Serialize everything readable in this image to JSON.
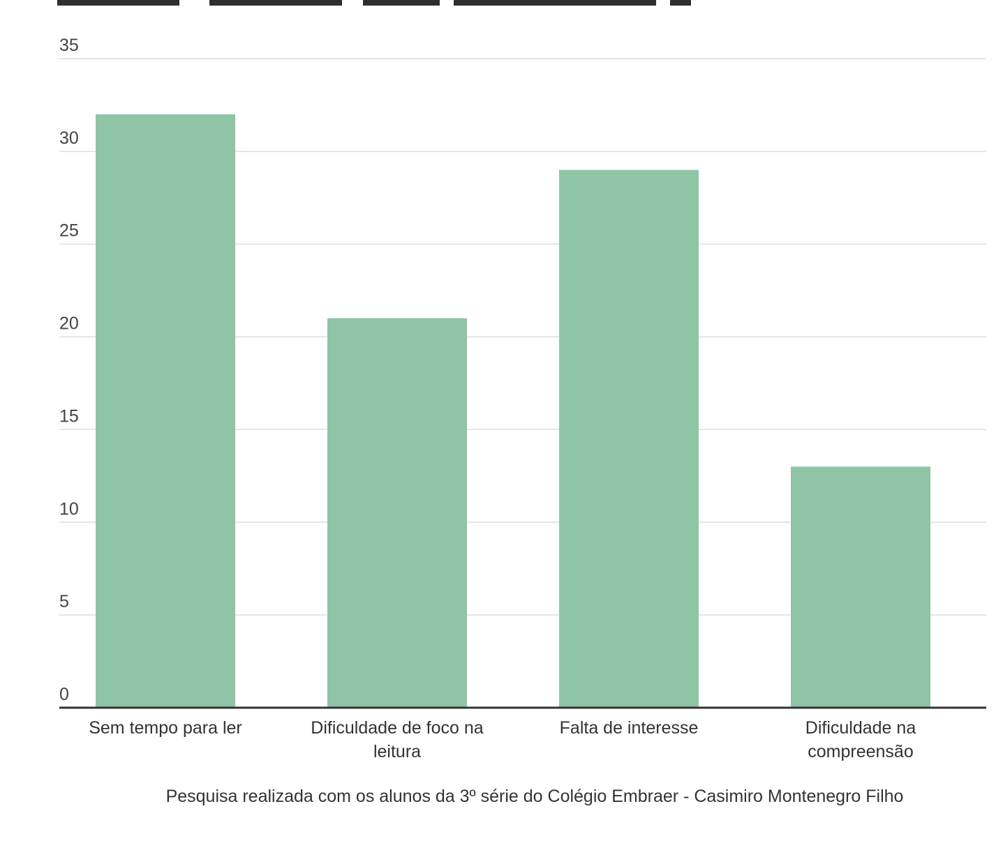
{
  "chart_data": {
    "type": "bar",
    "title": "",
    "xlabel": "",
    "ylabel": "",
    "categories": [
      "Sem tempo para ler",
      "Dificuldade de foco na leitura",
      "Falta de interesse",
      "Dificuldade na compreensão"
    ],
    "category_lines": [
      [
        "Sem tempo para ler"
      ],
      [
        "Dificuldade de foco na",
        "leitura"
      ],
      [
        "Falta de interesse"
      ],
      [
        "Dificuldade na",
        "compreensão"
      ]
    ],
    "values": [
      32,
      21,
      29,
      13
    ],
    "ylim": [
      0,
      35
    ],
    "yticks": [
      0,
      5,
      10,
      15,
      20,
      25,
      30,
      35
    ],
    "grid": true,
    "legend": "none",
    "bar_color": "#8fc4a7",
    "grid_color": "#dddddd",
    "axis_color": "#333333",
    "source_note": "Pesquisa realizada com os alunos da 3º série do Colégio Embraer - Casimiro Montenegro Filho"
  }
}
